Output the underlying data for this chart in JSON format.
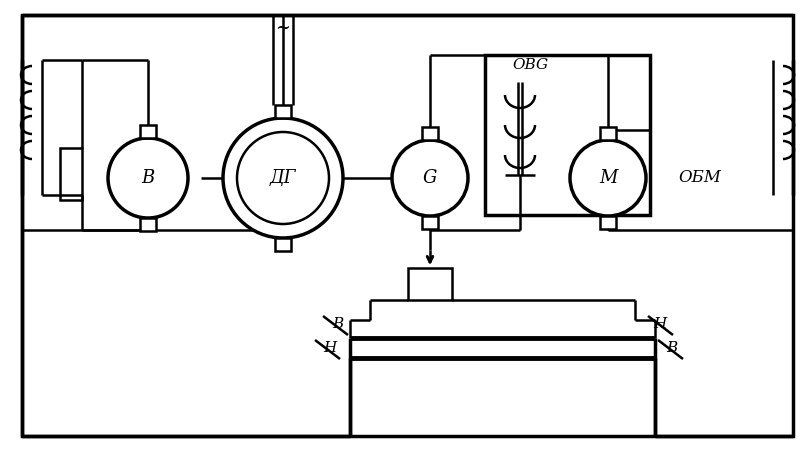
{
  "bg_color": "#ffffff",
  "line_color": "#000000",
  "lw": 1.8,
  "tlw": 2.5,
  "fig_width": 8.11,
  "fig_height": 4.54,
  "labels": {
    "B": "B",
    "DG": "ДГ",
    "G": "G",
    "M": "M",
    "OBG": "OBG",
    "OBM": "OБМ",
    "tilde": "~",
    "H_left": "H",
    "B_left": "B",
    "H_right": "H",
    "B_right": "B"
  }
}
